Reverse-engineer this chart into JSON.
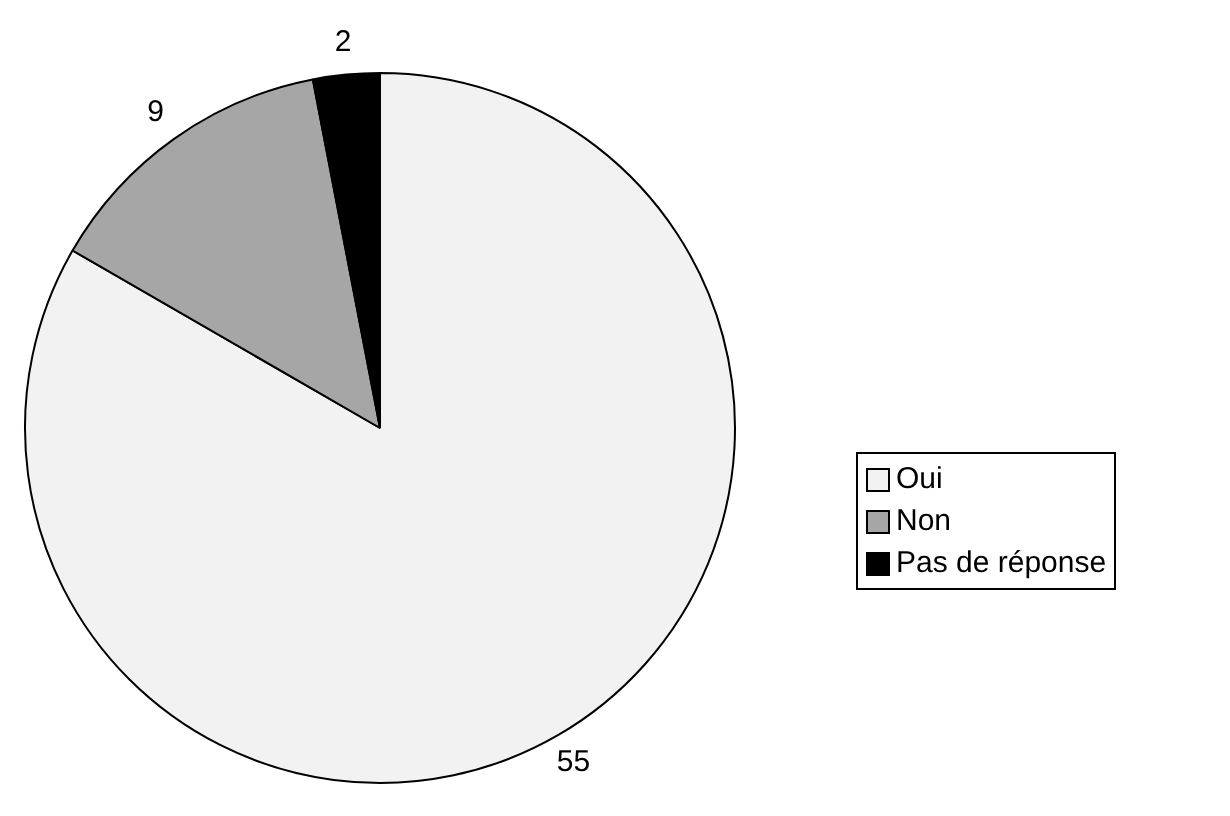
{
  "chart_data": {
    "type": "pie",
    "categories": [
      "Oui",
      "Non",
      "Pas de réponse"
    ],
    "values": [
      55,
      9,
      2
    ],
    "colors": [
      "#f2f2f2",
      "#a6a6a6",
      "#000000"
    ],
    "data_labels": true,
    "legend": "right"
  }
}
